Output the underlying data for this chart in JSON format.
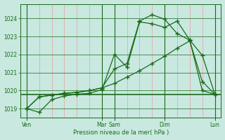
{
  "bg_color": "#c8e8e0",
  "line_color": "#1a6b1a",
  "grid_minor_color": "#e8a0a0",
  "ylabel": "Pression niveau de la mer( hPa )",
  "ylim": [
    1018.5,
    1024.8
  ],
  "yticks": [
    1019,
    1020,
    1021,
    1022,
    1023,
    1024
  ],
  "figsize": [
    3.2,
    2.0
  ],
  "dpi": 100,
  "day_labels": [
    "Ven",
    "Mar",
    "Sam",
    "Dim",
    "Lun"
  ],
  "day_x": [
    0,
    6,
    7,
    11,
    15
  ],
  "n_minor": 16,
  "hline_y": 1019.8,
  "line1_y": [
    1019.0,
    1018.8,
    1019.5,
    1019.7,
    1019.8,
    1019.85,
    1020.05,
    1022.0,
    1021.3,
    1023.8,
    1023.7,
    1023.5,
    1023.85,
    1022.8,
    1020.0,
    1019.8
  ],
  "line2_y": [
    1019.0,
    1019.65,
    1019.75,
    1019.85,
    1019.9,
    1020.0,
    1020.15,
    1021.2,
    1021.5,
    1023.85,
    1024.2,
    1023.95,
    1023.15,
    1022.8,
    1021.95,
    1019.8
  ],
  "line3_y": [
    1019.0,
    1019.65,
    1019.75,
    1019.85,
    1019.9,
    1020.0,
    1020.15,
    1020.4,
    1020.75,
    1021.1,
    1021.5,
    1021.9,
    1022.35,
    1022.75,
    1020.5,
    1019.8
  ]
}
